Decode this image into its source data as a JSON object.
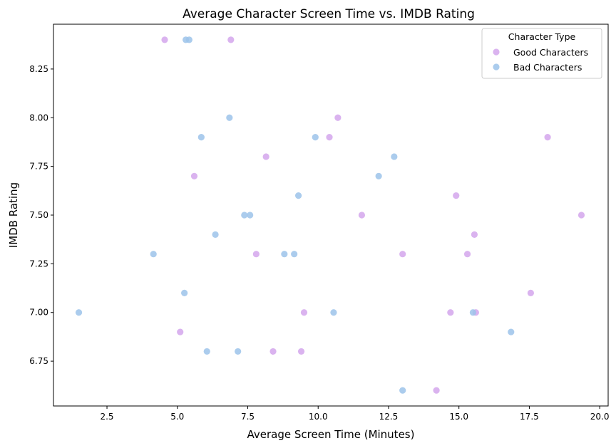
{
  "chart_data": {
    "type": "scatter",
    "title": "Average Character Screen Time vs. IMDB Rating",
    "xlabel": "Average Screen Time (Minutes)",
    "ylabel": "IMDB Rating",
    "xlim": [
      0.6,
      20.3
    ],
    "ylim": [
      6.52,
      8.48
    ],
    "x_ticks": [
      2.5,
      5.0,
      7.5,
      10.0,
      12.5,
      15.0,
      17.5,
      20.0
    ],
    "x_tick_labels": [
      "2.5",
      "5.0",
      "7.5",
      "10.0",
      "12.5",
      "15.0",
      "17.5",
      "20.0"
    ],
    "y_ticks": [
      6.75,
      7.0,
      7.25,
      7.5,
      7.75,
      8.0,
      8.25
    ],
    "y_tick_labels": [
      "6.75",
      "7.00",
      "7.25",
      "7.50",
      "7.75",
      "8.00",
      "8.25"
    ],
    "grid": false,
    "legend": {
      "title": "Character Type",
      "position": "top-right"
    },
    "series": [
      {
        "name": "Good Characters",
        "color": "#d4a6ec",
        "points": [
          [
            4.55,
            8.4
          ],
          [
            6.9,
            8.4
          ],
          [
            10.7,
            8.0
          ],
          [
            10.4,
            7.9
          ],
          [
            8.15,
            7.8
          ],
          [
            5.6,
            7.7
          ],
          [
            18.15,
            7.9
          ],
          [
            14.9,
            7.6
          ],
          [
            11.55,
            7.5
          ],
          [
            19.35,
            7.5
          ],
          [
            15.55,
            7.4
          ],
          [
            7.8,
            7.3
          ],
          [
            13.0,
            7.3
          ],
          [
            15.3,
            7.3
          ],
          [
            17.55,
            7.1
          ],
          [
            9.5,
            7.0
          ],
          [
            14.7,
            7.0
          ],
          [
            15.6,
            7.0
          ],
          [
            5.1,
            6.9
          ],
          [
            8.4,
            6.8
          ],
          [
            9.4,
            6.8
          ],
          [
            14.2,
            6.6
          ]
        ]
      },
      {
        "name": "Bad Characters",
        "color": "#9cc3ea",
        "points": [
          [
            5.3,
            8.4
          ],
          [
            5.42,
            8.4
          ],
          [
            6.85,
            8.0
          ],
          [
            5.85,
            7.9
          ],
          [
            9.9,
            7.9
          ],
          [
            12.7,
            7.8
          ],
          [
            12.15,
            7.7
          ],
          [
            9.3,
            7.6
          ],
          [
            7.38,
            7.5
          ],
          [
            7.58,
            7.5
          ],
          [
            6.35,
            7.4
          ],
          [
            4.15,
            7.3
          ],
          [
            8.8,
            7.3
          ],
          [
            9.15,
            7.3
          ],
          [
            5.25,
            7.1
          ],
          [
            1.5,
            7.0
          ],
          [
            10.55,
            7.0
          ],
          [
            15.5,
            7.0
          ],
          [
            16.85,
            6.9
          ],
          [
            6.05,
            6.8
          ],
          [
            7.15,
            6.8
          ],
          [
            13.0,
            6.6
          ]
        ]
      }
    ]
  }
}
